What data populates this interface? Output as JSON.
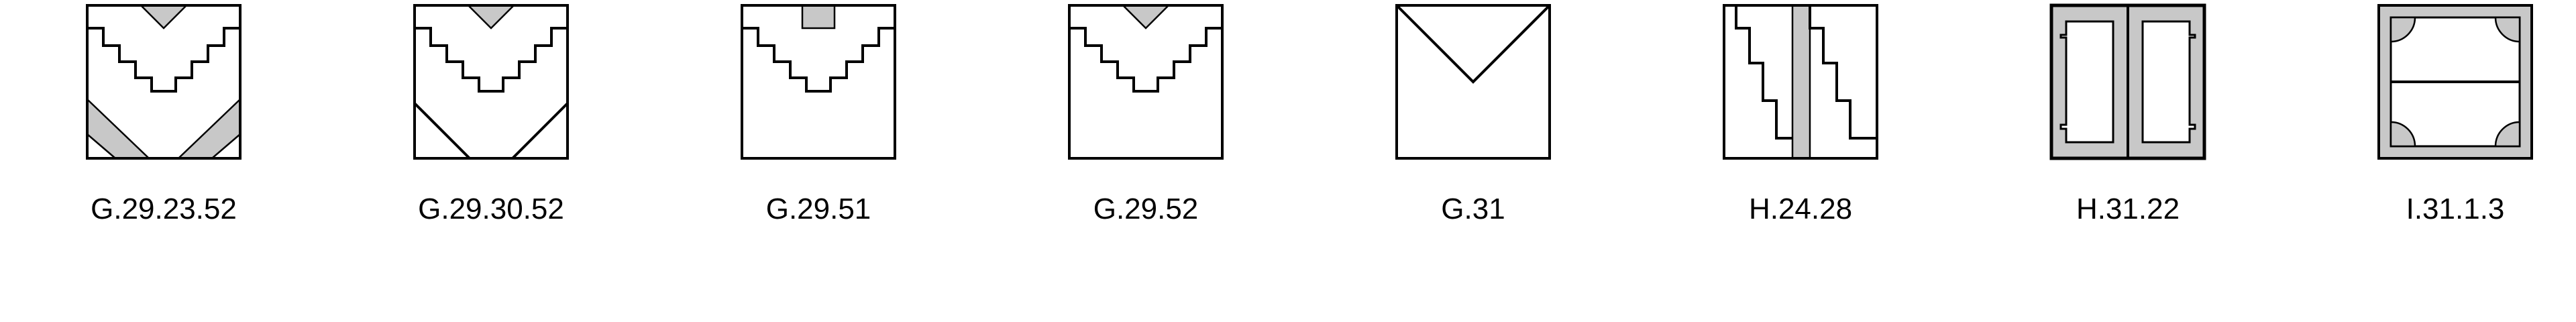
{
  "tiles": [
    {
      "label": "G.29.23.52",
      "pattern": "steps-with-corner-diagonals"
    },
    {
      "label": "G.29.30.52",
      "pattern": "steps-with-corner-lines"
    },
    {
      "label": "G.29.51",
      "pattern": "steps-with-square-notch"
    },
    {
      "label": "G.29.52",
      "pattern": "steps-with-triangle-notch"
    },
    {
      "label": "G.31",
      "pattern": "v-shape"
    },
    {
      "label": "H.24.28",
      "pattern": "vertical-bar-with-steps"
    },
    {
      "label": "H.31.22",
      "pattern": "double-bracket-frame"
    },
    {
      "label": "I.31.1.3",
      "pattern": "quarter-circle-corners"
    }
  ],
  "colors": {
    "stroke": "#000000",
    "fill": "#c8c8c8",
    "background": "#ffffff"
  }
}
